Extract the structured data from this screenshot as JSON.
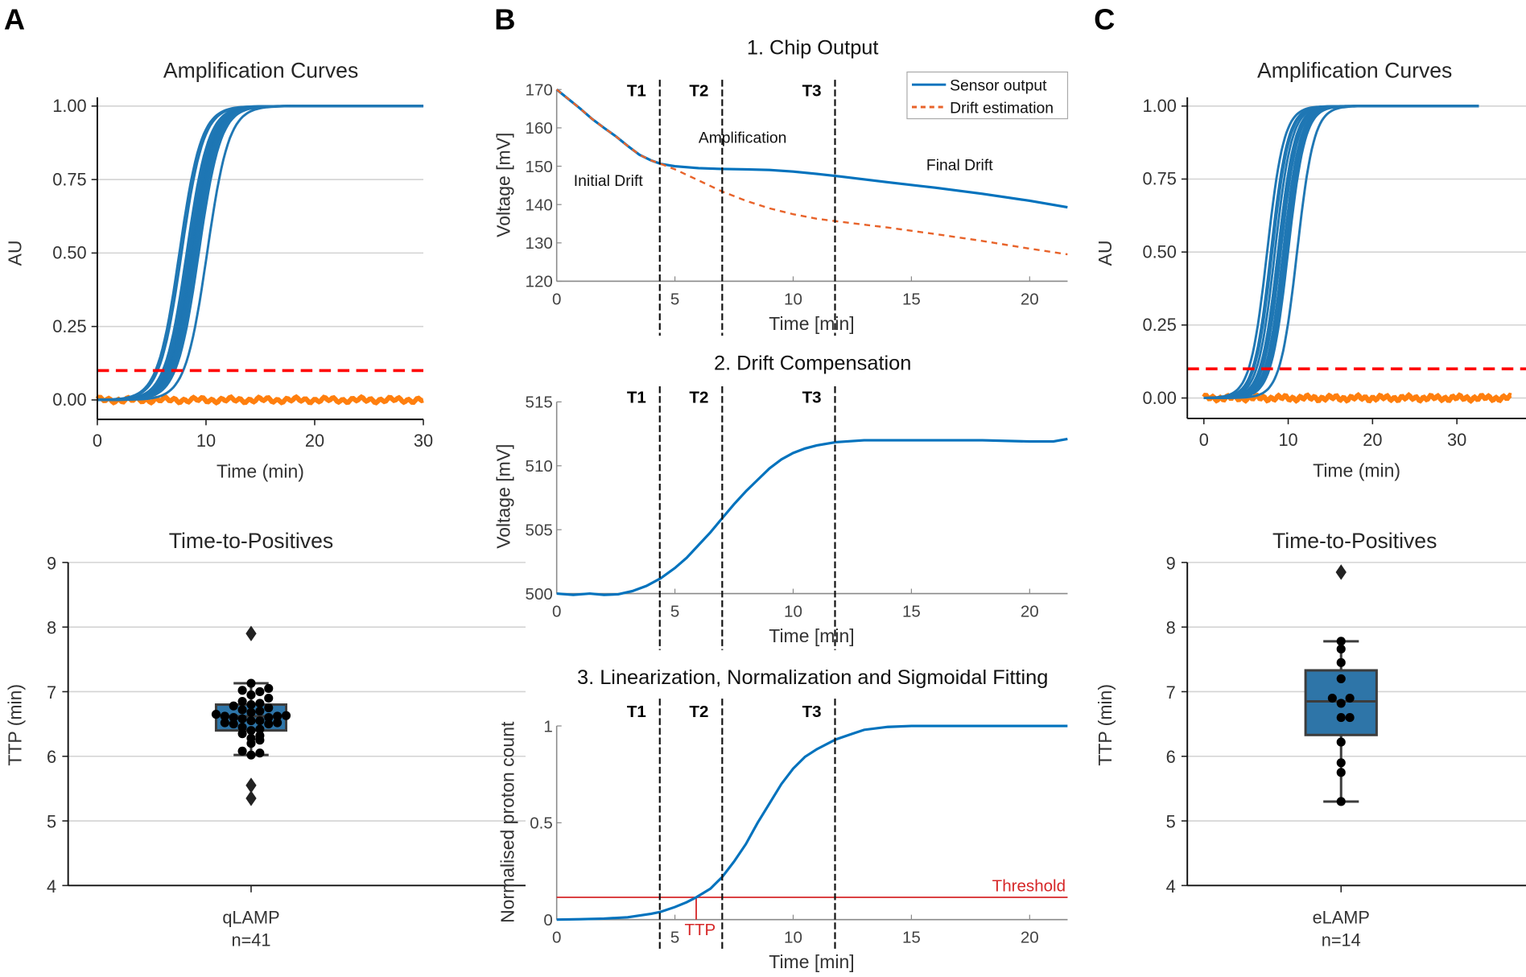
{
  "panel_labels": {
    "a": "A",
    "b": "B",
    "c": "C"
  },
  "chart_data": [
    {
      "id": "a_amp",
      "type": "line",
      "title": "Amplification Curves",
      "xlabel": "Time (min)",
      "ylabel": "AU",
      "xlim": [
        0,
        30
      ],
      "ylim": [
        -0.07,
        1.05
      ],
      "xticks": [
        0,
        10,
        20,
        30
      ],
      "xtick_labels": [
        "0",
        "10",
        "20",
        "30"
      ],
      "yticks": [
        0,
        0.25,
        0.5,
        0.75,
        1
      ],
      "ytick_labels": [
        "0.00",
        "0.25",
        "0.50",
        "0.75",
        "1.00"
      ],
      "grid": true,
      "threshold": 0.1,
      "negative_level": 0,
      "x_end": 30,
      "negative_end": 30,
      "positive_curve_midpoints_min": [
        7.55,
        7.75,
        8.22,
        8.25,
        8.28,
        8.4,
        8.45,
        8.48,
        8.52,
        8.55,
        8.6,
        8.62,
        8.65,
        8.7,
        8.7,
        8.72,
        8.72,
        8.75,
        8.75,
        8.78,
        8.8,
        8.8,
        8.82,
        8.82,
        8.83,
        8.85,
        8.88,
        8.9,
        8.92,
        8.95,
        8.98,
        9.0,
        9.02,
        9.05,
        9.1,
        9.15,
        9.2,
        9.22,
        9.25,
        9.33,
        10.1
      ],
      "colors": {
        "positive": "#1f77b4",
        "negative": "#ff7f0e",
        "threshold": "#ff0000"
      }
    },
    {
      "id": "a_ttp",
      "type": "box",
      "title": "Time-to-Positives",
      "ylabel": "TTP (min)",
      "category": "qLAMP",
      "n_label": "n=41",
      "ylim": [
        4,
        9
      ],
      "yticks": [
        4,
        5,
        6,
        7,
        8,
        9
      ],
      "ytick_labels": [
        "4",
        "5",
        "6",
        "7",
        "8",
        "9"
      ],
      "grid": true,
      "box": {
        "q1": 6.4,
        "median": 6.62,
        "q3": 6.8,
        "whisker_low": 6.02,
        "whisker_high": 7.13
      },
      "outliers": [
        7.9,
        5.55,
        5.35
      ],
      "points": [
        6.02,
        6.05,
        6.08,
        6.2,
        6.25,
        6.28,
        6.32,
        6.35,
        6.4,
        6.42,
        6.45,
        6.5,
        6.5,
        6.52,
        6.52,
        6.55,
        6.55,
        6.58,
        6.6,
        6.6,
        6.62,
        6.62,
        6.63,
        6.65,
        6.68,
        6.7,
        6.72,
        6.75,
        6.78,
        6.8,
        6.82,
        6.85,
        6.9,
        6.95,
        7.0,
        7.02,
        7.05,
        7.13
      ],
      "colors": {
        "box": "#2e75a8",
        "edge": "#3d3d3d",
        "points": "#000000"
      }
    },
    {
      "id": "b1",
      "type": "line",
      "title": "1. Chip Output",
      "xlabel": "Time [min]",
      "ylabel": "Voltage [mV]",
      "xlim": [
        0,
        21.6
      ],
      "ylim": [
        120,
        170
      ],
      "xticks": [
        0,
        5,
        10,
        15,
        20
      ],
      "xtick_labels": [
        "0",
        "5",
        "10",
        "15",
        "20"
      ],
      "yticks": [
        120,
        130,
        140,
        150,
        160,
        170
      ],
      "ytick_labels": [
        "120",
        "130",
        "140",
        "150",
        "160",
        "170"
      ],
      "markers": [
        {
          "label": "T1",
          "x": 4.36
        },
        {
          "label": "T2",
          "x": 7.0
        },
        {
          "label": "T3",
          "x": 11.77
        }
      ],
      "annotations": [
        "Initial Drift",
        "Amplification",
        "Final Drift"
      ],
      "legend": {
        "position": "top-right",
        "entries": [
          "Sensor output",
          "Drift estimation"
        ]
      },
      "series": [
        {
          "name": "Sensor output",
          "color": "#0072bd",
          "style": "solid",
          "x": [
            0,
            0.5,
            1,
            1.5,
            2,
            2.5,
            3,
            3.5,
            4,
            4.4,
            5,
            6,
            7,
            8,
            9,
            10,
            11,
            12,
            14,
            16,
            18,
            20,
            21.6
          ],
          "y": [
            170,
            167.5,
            165,
            162.3,
            160,
            157.8,
            155.3,
            153,
            151.5,
            150.6,
            150,
            149.5,
            149.3,
            149.2,
            149,
            148.6,
            148,
            147.3,
            145.8,
            144.4,
            142.8,
            141,
            139.3
          ]
        },
        {
          "name": "Drift estimation",
          "color": "#e8632a",
          "style": "dashed",
          "x": [
            0,
            0.5,
            1,
            1.5,
            2,
            2.5,
            3,
            3.5,
            4,
            4.4,
            5,
            6,
            7,
            8,
            9,
            10,
            11,
            12,
            14,
            16,
            18,
            20,
            21.6
          ],
          "y": [
            170,
            167.5,
            165,
            162.3,
            160,
            157.8,
            155.3,
            153,
            151.5,
            150.6,
            149.2,
            146.3,
            143.4,
            141,
            139,
            137.5,
            136.3,
            135.5,
            134,
            132.3,
            130.5,
            128.5,
            127
          ]
        }
      ]
    },
    {
      "id": "b2",
      "type": "line",
      "title": "2. Drift Compensation",
      "xlabel": "Time [min]",
      "ylabel": "Voltage [mV]",
      "xlim": [
        0,
        21.6
      ],
      "ylim": [
        500,
        515
      ],
      "xticks": [
        0,
        5,
        10,
        15,
        20
      ],
      "xtick_labels": [
        "0",
        "5",
        "10",
        "15",
        "20"
      ],
      "yticks": [
        500,
        505,
        510,
        515
      ],
      "ytick_labels": [
        "500",
        "505",
        "510",
        "515"
      ],
      "markers": [
        {
          "label": "T1",
          "x": 4.36
        },
        {
          "label": "T2",
          "x": 7.0
        },
        {
          "label": "T3",
          "x": 11.77
        }
      ],
      "series": [
        {
          "color": "#0072bd",
          "style": "solid",
          "x": [
            0,
            0.7,
            1.4,
            2,
            2.6,
            3.2,
            3.8,
            4.4,
            5,
            5.5,
            6,
            6.5,
            7,
            7.5,
            8,
            8.5,
            9,
            9.5,
            10,
            10.5,
            11,
            11.8,
            13,
            16,
            18,
            20,
            21,
            21.6
          ],
          "y": [
            500,
            499.9,
            500,
            499.9,
            499.95,
            500.2,
            500.6,
            501.2,
            502,
            502.8,
            503.8,
            504.8,
            505.9,
            507,
            508,
            508.9,
            509.8,
            510.5,
            511,
            511.35,
            511.6,
            511.85,
            512,
            512,
            512,
            511.9,
            511.9,
            512.1
          ]
        }
      ]
    },
    {
      "id": "b3",
      "type": "line",
      "title": "3. Linearization, Normalization and Sigmoidal Fitting",
      "xlabel": "Time [min]",
      "ylabel": "Normalised proton count",
      "xlim": [
        0,
        21.6
      ],
      "ylim": [
        0,
        1
      ],
      "xticks": [
        0,
        5,
        10,
        15,
        20
      ],
      "xtick_labels": [
        "0",
        "5",
        "10",
        "15",
        "20"
      ],
      "yticks": [
        0,
        0.5,
        1
      ],
      "ytick_labels": [
        "0",
        "0.5",
        "1"
      ],
      "markers": [
        {
          "label": "T1",
          "x": 4.36
        },
        {
          "label": "T2",
          "x": 7.0
        },
        {
          "label": "T3",
          "x": 11.77
        }
      ],
      "threshold": {
        "value": 0.115,
        "label": "Threshold",
        "color": "#d62728"
      },
      "ttp": {
        "x": 5.9,
        "label": "TTP"
      },
      "series": [
        {
          "color": "#0072bd",
          "style": "solid",
          "x": [
            0,
            1,
            2,
            3,
            4,
            4.4,
            5,
            5.5,
            5.9,
            6.5,
            7,
            7.5,
            8,
            8.5,
            9,
            9.5,
            10,
            10.5,
            11,
            11.8,
            12.5,
            13,
            14,
            15,
            21.6
          ],
          "y": [
            0,
            0.002,
            0.005,
            0.012,
            0.03,
            0.04,
            0.065,
            0.09,
            0.115,
            0.16,
            0.22,
            0.3,
            0.39,
            0.5,
            0.6,
            0.7,
            0.78,
            0.84,
            0.88,
            0.93,
            0.96,
            0.98,
            0.995,
            1,
            1
          ]
        }
      ]
    },
    {
      "id": "c_amp",
      "type": "line",
      "title": "Amplification Curves",
      "xlabel": "Time (min)",
      "ylabel": "AU",
      "xlim": [
        -2,
        38.2
      ],
      "ylim": [
        -0.07,
        1.05
      ],
      "xticks": [
        0,
        10,
        20,
        30
      ],
      "xtick_labels": [
        "0",
        "10",
        "20",
        "30"
      ],
      "yticks": [
        0,
        0.25,
        0.5,
        0.75,
        1
      ],
      "ytick_labels": [
        "0.00",
        "0.25",
        "0.50",
        "0.75",
        "1.00"
      ],
      "grid": true,
      "threshold": 0.1,
      "negative_level": 0,
      "x_end": 32.6,
      "negative_end": 36.5,
      "positive_curve_midpoints_min": [
        7.5,
        7.95,
        8.1,
        8.42,
        8.8,
        8.8,
        9.02,
        9.1,
        9.1,
        9.4,
        9.65,
        9.86,
        9.98,
        11.05
      ],
      "colors": {
        "positive": "#1f77b4",
        "negative": "#ff7f0e",
        "threshold": "#ff0000"
      }
    },
    {
      "id": "c_ttp",
      "type": "box",
      "title": "Time-to-Positives",
      "ylabel": "TTP (min)",
      "category": "eLAMP",
      "n_label": "n=14",
      "ylim": [
        4,
        9
      ],
      "yticks": [
        4,
        5,
        6,
        7,
        8,
        9
      ],
      "ytick_labels": [
        "4",
        "5",
        "6",
        "7",
        "8",
        "9"
      ],
      "grid": true,
      "box": {
        "q1": 6.33,
        "median": 6.85,
        "q3": 7.33,
        "whisker_low": 5.3,
        "whisker_high": 7.78
      },
      "outliers": [
        8.85
      ],
      "points": [
        5.3,
        5.75,
        5.9,
        6.22,
        6.6,
        6.6,
        6.82,
        6.9,
        6.9,
        7.2,
        7.45,
        7.66,
        7.78
      ],
      "colors": {
        "box": "#2e75a8",
        "edge": "#3d3d3d",
        "points": "#000000"
      }
    }
  ]
}
